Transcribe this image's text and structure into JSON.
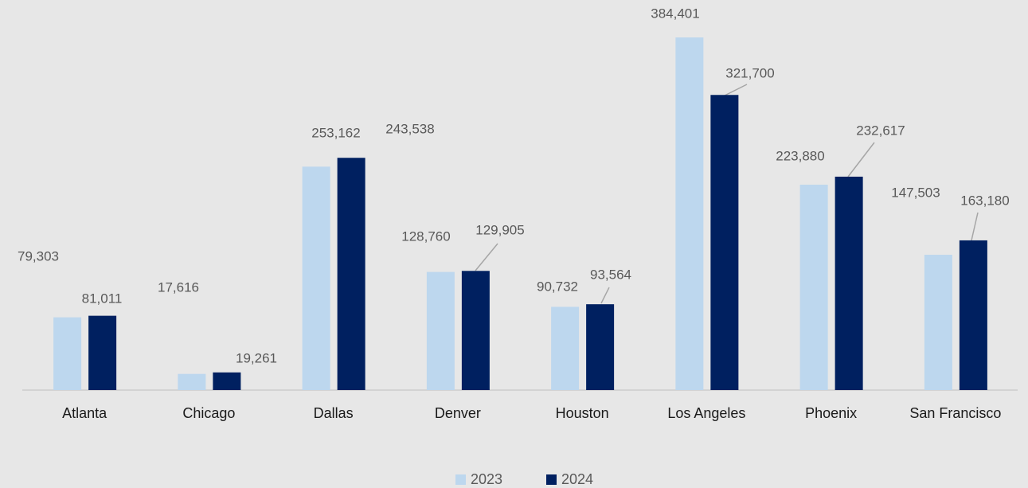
{
  "chart_data": {
    "type": "bar",
    "categories": [
      "Atlanta",
      "Chicago",
      "Dallas",
      "Denver",
      "Houston",
      "Los Angeles",
      "Phoenix",
      "San Francisco"
    ],
    "series": [
      {
        "name": "2023",
        "color": "#bdd7ee",
        "values": [
          79303,
          17616,
          243538,
          128760,
          90732,
          384401,
          223880,
          147503
        ],
        "value_labels": [
          "79,303",
          "17,616",
          "243,538",
          "128,760",
          "90,732",
          "384,401",
          "223,880",
          "147,503"
        ]
      },
      {
        "name": "2024",
        "color": "#002060",
        "values": [
          81011,
          19261,
          253162,
          129905,
          93564,
          321700,
          232617,
          163180
        ],
        "value_labels": [
          "81,011",
          "19,261",
          "253,162",
          "129,905",
          "93,564",
          "321,700",
          "232,617",
          "163,180"
        ]
      }
    ],
    "legend": "bottom"
  }
}
